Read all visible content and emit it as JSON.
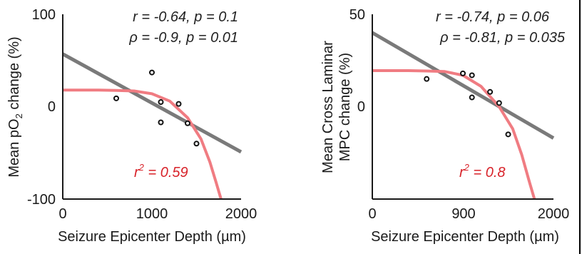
{
  "chart_data": [
    {
      "type": "scatter",
      "xlabel": "Seizure Epicenter Depth (µm)",
      "ylabel_parts": [
        "Mean pO",
        "2",
        " change (%)"
      ],
      "x_ticks": [
        "0",
        "1000",
        "2000"
      ],
      "y_ticks": [
        "100",
        "0",
        "-100"
      ],
      "xlim": [
        0,
        2000
      ],
      "ylim": [
        -100,
        100
      ],
      "stats": [
        "r = -0.64, p = 0.1",
        "ρ = -0.9, p = 0.01"
      ],
      "fit_label": {
        "prefix": "r",
        "sup": "2",
        "suffix": " = 0.59"
      },
      "linear_fit": {
        "x": [
          0,
          2000
        ],
        "y": [
          57,
          -49
        ]
      },
      "sigmoid_fit": {
        "x": [
          0,
          200,
          400,
          600,
          800,
          1000,
          1200,
          1400,
          1550,
          1650,
          1720,
          1775
        ],
        "y": [
          18,
          18,
          18,
          17.5,
          17,
          14,
          6,
          -12,
          -35,
          -60,
          -82,
          -100
        ]
      },
      "points": [
        {
          "x": 600,
          "y": 9
        },
        {
          "x": 1000,
          "y": 37
        },
        {
          "x": 1100,
          "y": 5
        },
        {
          "x": 1100,
          "y": -17
        },
        {
          "x": 1300,
          "y": 3
        },
        {
          "x": 1400,
          "y": -18
        },
        {
          "x": 1500,
          "y": -40
        }
      ]
    },
    {
      "type": "scatter",
      "xlabel": "Seizure Epicenter Depth (µm)",
      "ylabel_lines": [
        "Mean Cross Laminar",
        "MPC change (%)"
      ],
      "x_ticks": [
        "0",
        "900",
        "2000"
      ],
      "y_ticks": [
        "50",
        "0"
      ],
      "xlim": [
        0,
        2000
      ],
      "ylim": [
        -50,
        50
      ],
      "stats": [
        "r = -0.74, p = 0.06",
        "ρ = -0.81, p = 0.035"
      ],
      "fit_label": {
        "prefix": "r",
        "sup": "2",
        "suffix": " = 0.8"
      },
      "linear_fit": {
        "x": [
          0,
          2000
        ],
        "y": [
          40,
          -17
        ]
      },
      "sigmoid_fit": {
        "x": [
          0,
          200,
          400,
          600,
          800,
          1000,
          1200,
          1400,
          1550,
          1650,
          1730,
          1790
        ],
        "y": [
          19.5,
          19.5,
          19.5,
          19.3,
          19,
          17,
          11,
          0,
          -12,
          -26,
          -40,
          -50
        ]
      },
      "points": [
        {
          "x": 600,
          "y": 15
        },
        {
          "x": 1000,
          "y": 18
        },
        {
          "x": 1100,
          "y": 17
        },
        {
          "x": 1100,
          "y": 5
        },
        {
          "x": 1300,
          "y": 8
        },
        {
          "x": 1400,
          "y": 2
        },
        {
          "x": 1500,
          "y": -15
        }
      ]
    }
  ],
  "colors": {
    "fit_line": "#f07c82",
    "fit_label": "#d8232a",
    "linear_line": "#7a7a7a",
    "axis": "#1a1a1a",
    "points": "#111111"
  }
}
